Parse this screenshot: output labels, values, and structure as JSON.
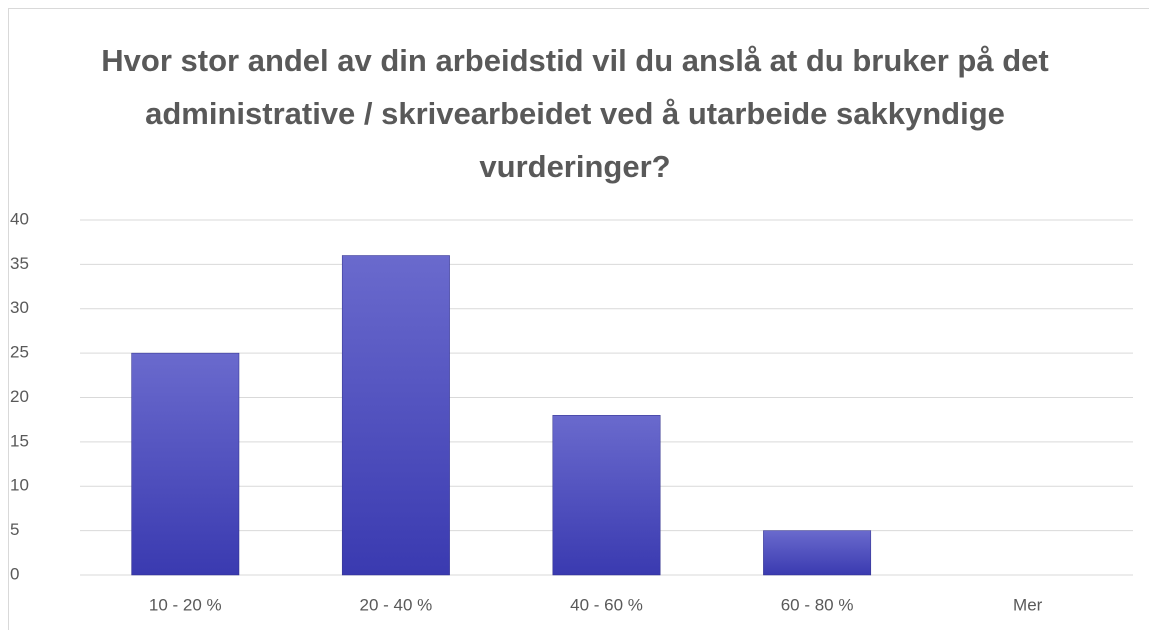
{
  "chart_data": {
    "type": "bar",
    "title": "Hvor stor andel av din arbeidstid vil du anslå at du bruker på det administrative / skrivearbeidet ved å utarbeide sakkyndige vurderinger?",
    "categories": [
      "10 - 20 %",
      "20 - 40 %",
      "40 - 60 %",
      "60 - 80 %",
      "Mer"
    ],
    "values": [
      25,
      36,
      18,
      5,
      0
    ],
    "color": "#4848bf",
    "ylim": [
      0,
      40
    ],
    "yticks": [
      0,
      5,
      10,
      15,
      20,
      25,
      30,
      35,
      40
    ],
    "grid": true
  }
}
